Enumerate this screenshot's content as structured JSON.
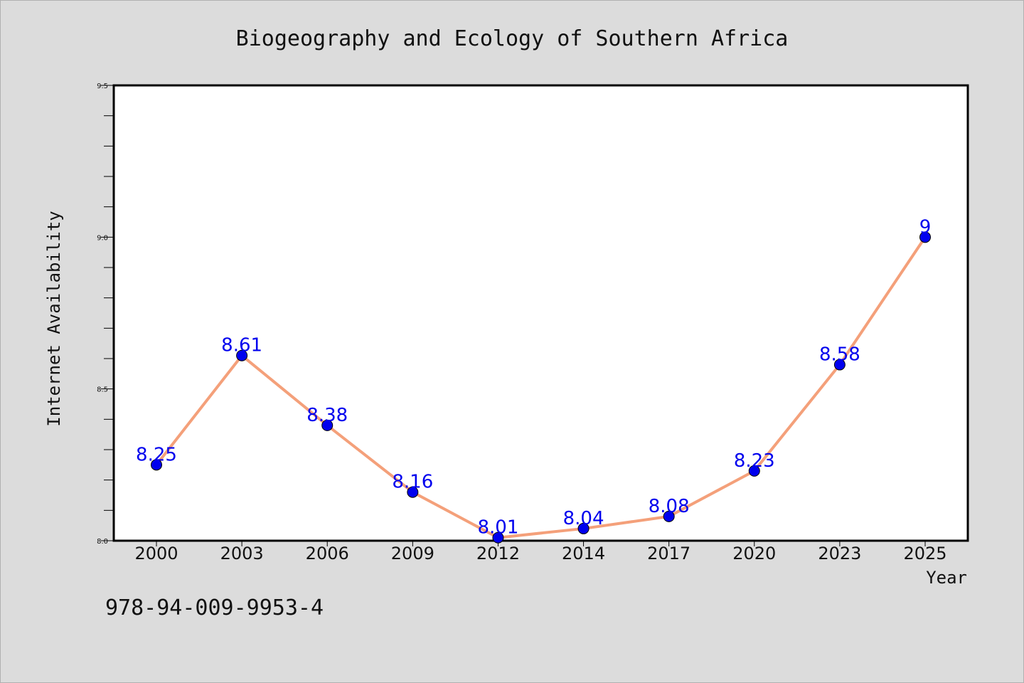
{
  "chart_data": {
    "type": "line",
    "title": "Biogeography and Ecology of Southern Africa",
    "xlabel": "Year",
    "ylabel": "Internet Availability",
    "categories": [
      "2000",
      "2003",
      "2006",
      "2009",
      "2012",
      "2014",
      "2017",
      "2020",
      "2023",
      "2025"
    ],
    "values": [
      8.25,
      8.61,
      8.38,
      8.16,
      8.01,
      8.04,
      8.08,
      8.23,
      8.58,
      9
    ],
    "data_labels": [
      "8.25",
      "8.61",
      "8.38",
      "8.16",
      "8.01",
      "8.04",
      "8.08",
      "8.23",
      "8.58",
      "9"
    ],
    "ylim": [
      8.0,
      9.5
    ],
    "yticks": [
      "8.0",
      "8.5",
      "9.0",
      "9.5"
    ],
    "grid": false,
    "line_color": "#f4a07a",
    "marker_color": "#0000ee",
    "label_color": "#0000ee"
  },
  "footer": {
    "isbn": "978-94-009-9953-4"
  }
}
